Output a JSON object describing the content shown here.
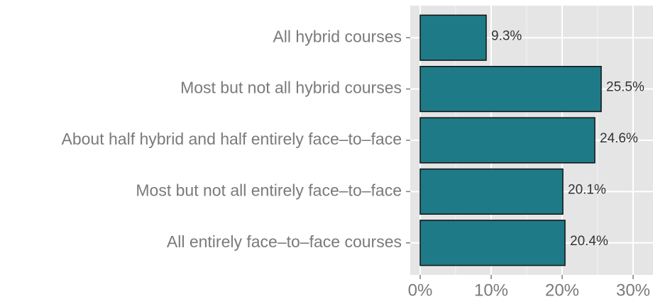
{
  "chart_data": {
    "type": "bar",
    "orientation": "horizontal",
    "categories": [
      "All hybrid courses",
      "Most but not all hybrid courses",
      "About half hybrid and half entirely face–to–face",
      "Most but not all entirely face–to–face",
      "All entirely face–to–face courses"
    ],
    "values": [
      9.3,
      25.5,
      24.6,
      20.1,
      20.4
    ],
    "value_labels": [
      "9.3%",
      "25.5%",
      "24.6%",
      "20.1%",
      "20.4%"
    ],
    "color": "#1f7a87",
    "xlim": [
      -1.4,
      32.8
    ],
    "xticks": [
      {
        "value": 0,
        "label": "0%"
      },
      {
        "value": 10,
        "label": "10%"
      },
      {
        "value": 20,
        "label": "20%"
      },
      {
        "value": 30,
        "label": "30%"
      }
    ],
    "minor_xticks": [
      5,
      15,
      25
    ],
    "grid": true
  }
}
